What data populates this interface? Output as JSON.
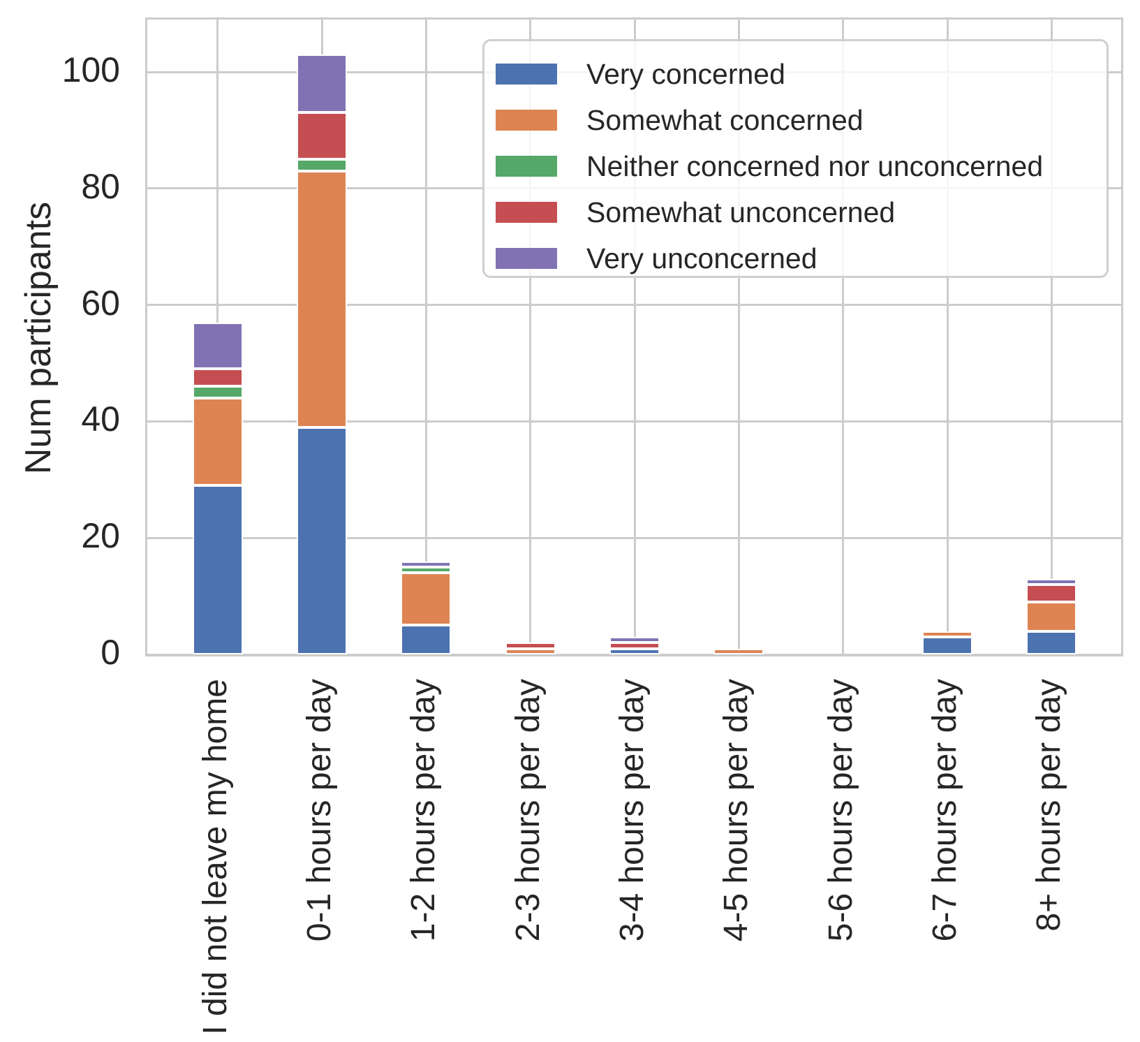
{
  "chart_data": {
    "type": "bar",
    "stacked": true,
    "title": "",
    "xlabel": "",
    "ylabel": "Num participants",
    "categories": [
      "I did not leave my home",
      "0-1 hours per day",
      "1-2 hours per day",
      "2-3 hours per day",
      "3-4 hours per day",
      "4-5 hours per day",
      "5-6 hours per day",
      "6-7 hours per day",
      "8+ hours per day"
    ],
    "series": [
      {
        "name": "Very concerned",
        "color": "#4C72B0",
        "values": [
          29,
          39,
          5,
          0,
          1,
          0,
          0,
          3,
          4
        ]
      },
      {
        "name": "Somewhat concerned",
        "color": "#DD8452",
        "values": [
          15,
          44,
          9,
          1,
          0,
          1,
          0,
          1,
          5
        ]
      },
      {
        "name": "Neither concerned nor unconcerned",
        "color": "#55A868",
        "values": [
          2,
          2,
          1,
          0,
          0,
          0,
          0,
          0,
          0
        ]
      },
      {
        "name": "Somewhat unconcerned",
        "color": "#C44E52",
        "values": [
          3,
          8,
          0,
          1,
          1,
          0,
          0,
          0,
          3
        ]
      },
      {
        "name": "Very unconcerned",
        "color": "#8172B3",
        "values": [
          8,
          10,
          1,
          0,
          1,
          0,
          0,
          0,
          1
        ]
      }
    ],
    "ytick_labels": [
      "0",
      "20",
      "40",
      "60",
      "80",
      "100"
    ],
    "yticks": [
      0,
      20,
      40,
      60,
      80,
      100
    ],
    "ylim": [
      0,
      109
    ],
    "grid": true,
    "legend_position": "upper right",
    "grid_color": "#CCCCCC",
    "text_color": "#262626",
    "bar_edge_color": "#FFFFFF"
  }
}
